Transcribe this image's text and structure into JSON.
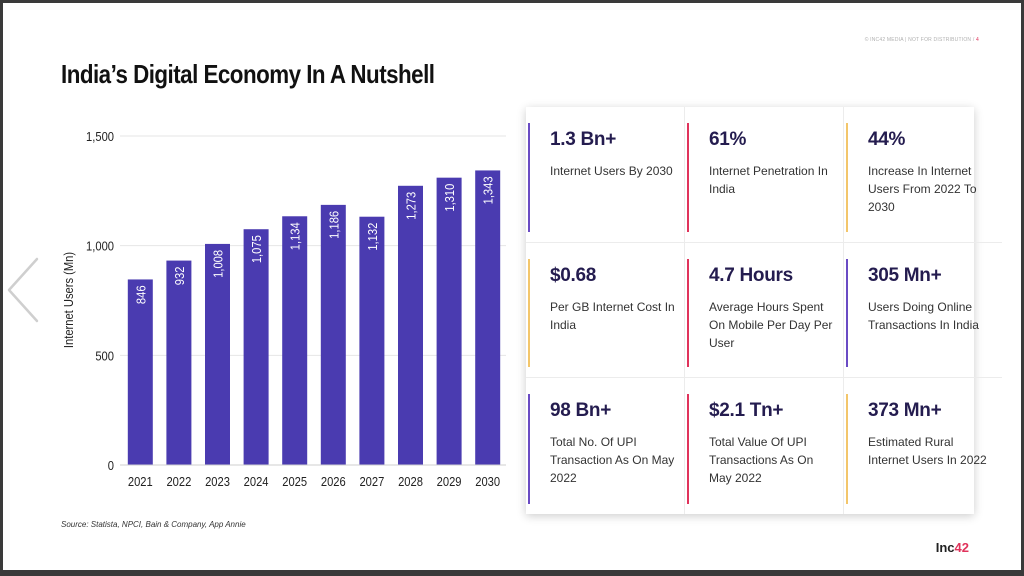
{
  "header": {
    "note": "© INC42 MEDIA | NOT FOR DISTRIBUTION  /",
    "page": "4"
  },
  "title": "India’s Digital Economy In A Nutshell",
  "source": "Source: Statista, NPCI, Bain & Company, App Annie",
  "logo": {
    "text": "Inc",
    "num": "42"
  },
  "colors": {
    "bar": "#4a3bb0",
    "bar_top": "#5544bf",
    "accent_purple": "#6a4bc4",
    "accent_red": "#e0335b",
    "accent_yellow": "#f3c66b"
  },
  "chart_data": {
    "type": "bar",
    "categories": [
      "2021",
      "2022",
      "2023",
      "2024",
      "2025",
      "2026",
      "2027",
      "2028",
      "2029",
      "2030"
    ],
    "values": [
      846,
      932,
      1008,
      1075,
      1134,
      1186,
      1132,
      1273,
      1310,
      1343
    ],
    "data_labels": [
      "846",
      "932",
      "1,008",
      "1,075",
      "1,134",
      "1,186",
      "1,132",
      "1,273",
      "1,310",
      "1,343"
    ],
    "ylabel": "Internet Users (Mn)",
    "ylim": [
      0,
      1500
    ],
    "yticks": [
      0,
      500,
      1000,
      1500
    ],
    "ytick_labels": [
      "0",
      "500",
      "1,000",
      "1,500"
    ],
    "grid": true
  },
  "stats": [
    {
      "value": "1.3 Bn+",
      "label": "Internet Users By 2030",
      "accent": "#6a4bc4"
    },
    {
      "value": "61%",
      "label": "Internet Penetration In India",
      "accent": "#e0335b"
    },
    {
      "value": "44%",
      "label": "Increase In Internet Users From 2022 To 2030",
      "accent": "#f3c66b"
    },
    {
      "value": "$0.68",
      "label": "Per GB Internet Cost In India",
      "accent": "#f3c66b"
    },
    {
      "value": "4.7 Hours",
      "label": "Average Hours Spent On Mobile Per Day Per User",
      "accent": "#e0335b"
    },
    {
      "value": "305 Mn+",
      "label": "Users Doing Online Transactions In India",
      "accent": "#6a4bc4"
    },
    {
      "value": "98 Bn+",
      "label": "Total No. Of UPI Transaction As On May 2022",
      "accent": "#6a4bc4"
    },
    {
      "value": "$2.1 Tn+",
      "label": "Total Value Of UPI Transactions As On May 2022",
      "accent": "#e0335b"
    },
    {
      "value": "373 Mn+",
      "label": "Estimated Rural Internet Users In 2022",
      "accent": "#f3c66b"
    }
  ]
}
